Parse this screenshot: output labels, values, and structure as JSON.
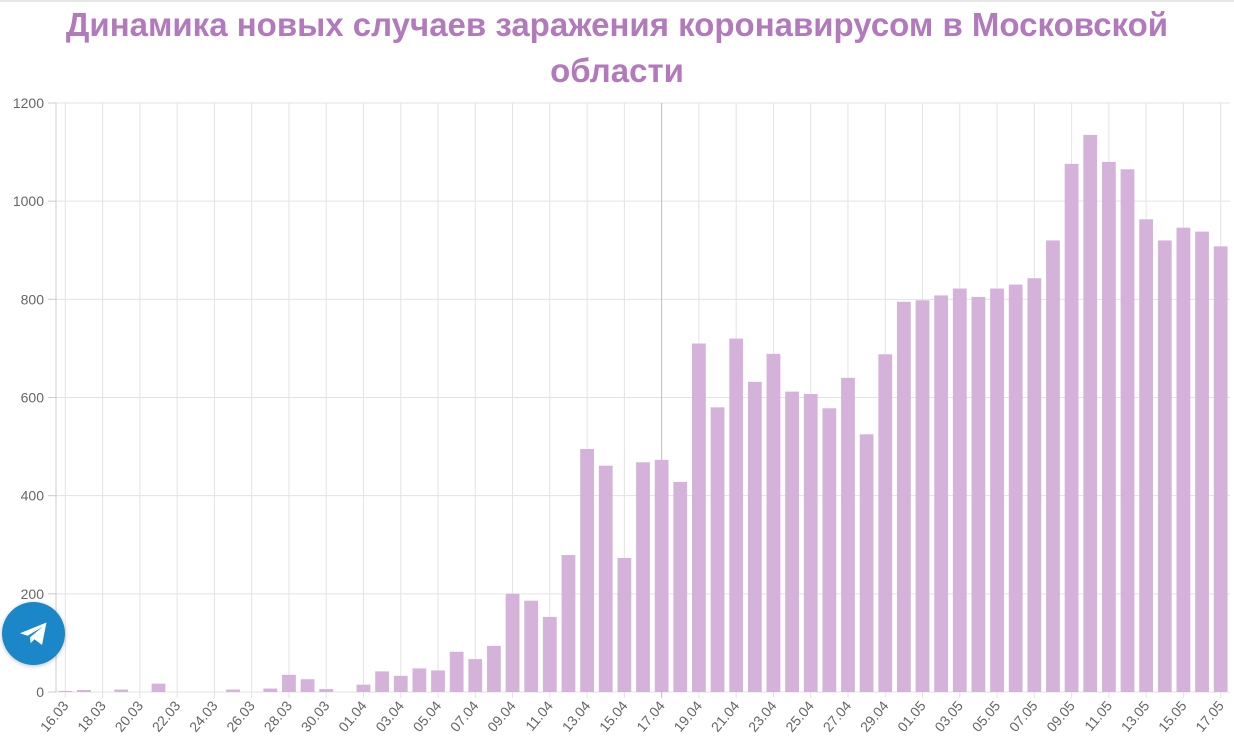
{
  "chart_data": {
    "type": "bar",
    "title": "Динамика новых случаев заражения коронавирусом в Московской области",
    "xlabel": "",
    "ylabel": "",
    "ylim": [
      0,
      1200
    ],
    "y_ticks": [
      0,
      200,
      400,
      600,
      800,
      1000,
      1200
    ],
    "grid": true,
    "legend": "none",
    "bar_color": "#d4b2d9",
    "categories": [
      "16.03",
      "17.03",
      "18.03",
      "19.03",
      "20.03",
      "21.03",
      "22.03",
      "23.03",
      "24.03",
      "25.03",
      "26.03",
      "27.03",
      "28.03",
      "29.03",
      "30.03",
      "31.03",
      "01.04",
      "02.04",
      "03.04",
      "04.04",
      "05.04",
      "06.04",
      "07.04",
      "08.04",
      "09.04",
      "10.04",
      "11.04",
      "12.04",
      "13.04",
      "14.04",
      "15.04",
      "16.04",
      "17.04",
      "18.04",
      "19.04",
      "20.04",
      "21.04",
      "22.04",
      "23.04",
      "24.04",
      "25.04",
      "26.04",
      "27.04",
      "28.04",
      "29.04",
      "30.04",
      "01.05",
      "02.05",
      "03.05",
      "04.05",
      "05.05",
      "06.05",
      "07.05",
      "08.05",
      "09.05",
      "10.05",
      "11.05",
      "12.05",
      "13.05",
      "14.05",
      "15.05",
      "16.05",
      "17.05"
    ],
    "tick_labels": [
      "16.03",
      "18.03",
      "20.03",
      "22.03",
      "24.03",
      "26.03",
      "28.03",
      "30.03",
      "01.04",
      "03.04",
      "05.04",
      "07.04",
      "09.04",
      "11.04",
      "13.04",
      "15.04",
      "17.04",
      "19.04",
      "21.04",
      "23.04",
      "25.04",
      "27.04",
      "29.04",
      "01.05",
      "03.05",
      "05.05",
      "07.05",
      "09.05",
      "11.05",
      "13.05",
      "15.05",
      "17.05"
    ],
    "values": [
      2,
      4,
      0,
      5,
      0,
      17,
      0,
      0,
      0,
      5,
      0,
      7,
      35,
      26,
      6,
      0,
      15,
      42,
      33,
      48,
      44,
      82,
      67,
      94,
      200,
      186,
      153,
      279,
      495,
      461,
      273,
      468,
      473,
      428,
      710,
      580,
      720,
      632,
      689,
      612,
      607,
      578,
      640,
      525,
      688,
      795,
      798,
      808,
      822,
      805,
      822,
      830,
      843,
      920,
      1076,
      1135,
      1080,
      1065,
      963,
      920,
      946,
      938,
      908
    ]
  },
  "telegram_button": {
    "icon": "telegram-plane-icon",
    "color": "#1b87c9"
  }
}
